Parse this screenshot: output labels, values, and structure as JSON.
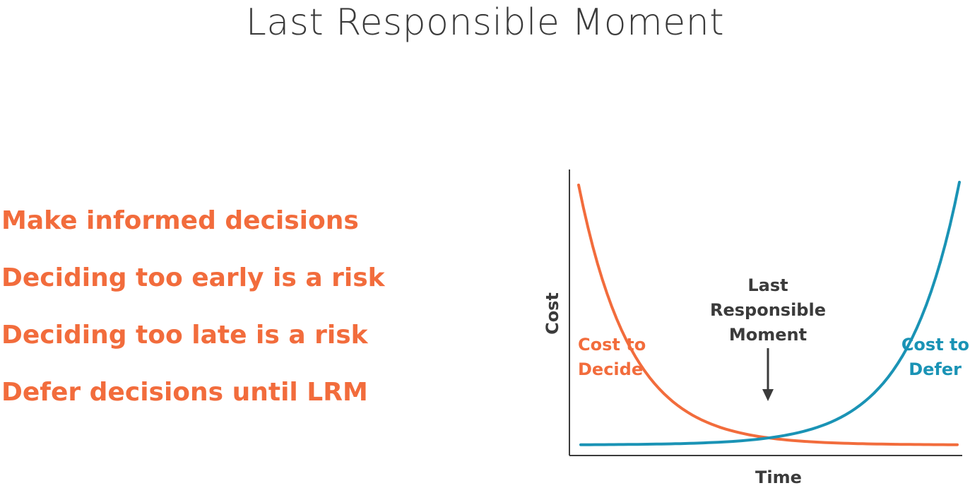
{
  "title": "Last Responsible Moment",
  "bullets": [
    "Make informed decisions",
    "Deciding too early is a risk",
    "Deciding too late is a risk",
    "Defer decisions until LRM"
  ],
  "colors": {
    "accent_orange": "#f26c3c",
    "accent_blue": "#1a93b5",
    "axis": "#3b3b3b",
    "text_dark": "#3b3b3b"
  },
  "chart": {
    "xlabel": "Time",
    "ylabel": "Cost",
    "decide_label": [
      "Cost to",
      "Decide"
    ],
    "defer_label": [
      "Cost to",
      "Defer"
    ],
    "lrm_label": [
      "Last",
      "Responsible",
      "Moment"
    ]
  }
}
